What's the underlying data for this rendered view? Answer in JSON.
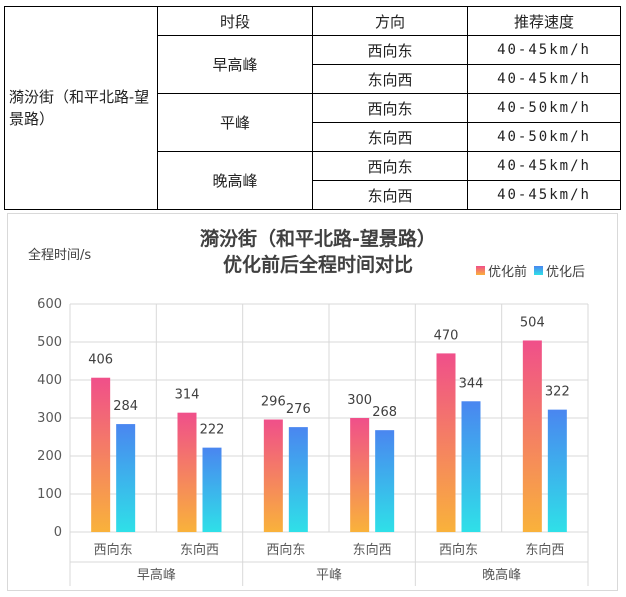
{
  "table": {
    "headers": [
      "时段",
      "方向",
      "推荐速度"
    ],
    "road": "漪汾街（和平北路-望景路）",
    "rows": [
      {
        "period": "早高峰",
        "direction": "西向东",
        "speed": "40-45km/h"
      },
      {
        "period": "早高峰",
        "direction": "东向西",
        "speed": "40-45km/h"
      },
      {
        "period": "平峰",
        "direction": "西向东",
        "speed": "40-50km/h"
      },
      {
        "period": "平峰",
        "direction": "东向西",
        "speed": "40-50km/h"
      },
      {
        "period": "晚高峰",
        "direction": "西向东",
        "speed": "40-45km/h"
      },
      {
        "period": "晚高峰",
        "direction": "东向西",
        "speed": "40-45km/h"
      }
    ]
  },
  "chart_data": {
    "type": "bar",
    "title_line1": "漪汾街（和平北路-望景路）",
    "title_line2": "优化前后全程时间对比",
    "ylabel": "全程时间/s",
    "xlabel": "",
    "ylim": [
      0,
      600
    ],
    "yticks": [
      0,
      100,
      200,
      300,
      400,
      500,
      600
    ],
    "categories": [
      "西向东",
      "东向西",
      "西向东",
      "东向西",
      "西向东",
      "东向西"
    ],
    "groups": [
      {
        "label": "早高峰",
        "span": 2
      },
      {
        "label": "平峰",
        "span": 2
      },
      {
        "label": "晚高峰",
        "span": 2
      }
    ],
    "series": [
      {
        "name": "优化前",
        "values": [
          406,
          314,
          296,
          300,
          470,
          504
        ],
        "color_top": "#f04f8a",
        "color_bottom": "#f9b23b"
      },
      {
        "name": "优化后",
        "values": [
          284,
          222,
          276,
          268,
          344,
          322
        ],
        "color_top": "#4a86f0",
        "color_bottom": "#2fe0e8"
      }
    ],
    "grid": true,
    "legend_position": "top-right"
  }
}
